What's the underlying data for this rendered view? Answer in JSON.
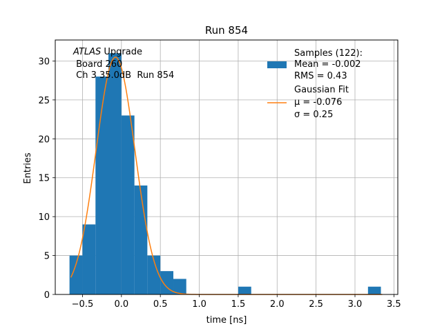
{
  "chart_data": {
    "type": "bar",
    "title": "Run 854",
    "xlabel": "time [ns]",
    "ylabel": "Entries",
    "xlim": [
      -0.85,
      3.55
    ],
    "ylim": [
      0,
      32.7
    ],
    "xticks": [
      -0.5,
      0.0,
      0.5,
      1.0,
      1.5,
      2.0,
      2.5,
      3.0,
      3.5
    ],
    "xtick_labels": [
      "−0.5",
      "0.0",
      "0.5",
      "1.0",
      "1.5",
      "2.0",
      "2.5",
      "3.0",
      "3.5"
    ],
    "yticks": [
      0,
      5,
      10,
      15,
      20,
      25,
      30
    ],
    "ytick_labels": [
      "0",
      "5",
      "10",
      "15",
      "20",
      "25",
      "30"
    ],
    "grid": true,
    "histogram": {
      "bin_edges": [
        -0.667,
        -0.5,
        -0.333,
        -0.167,
        0.0,
        0.167,
        0.333,
        0.5,
        0.667,
        0.833,
        1.0,
        1.167,
        1.333,
        1.5,
        1.667,
        1.833,
        2.0,
        2.167,
        2.333,
        2.5,
        2.667,
        2.833,
        3.0,
        3.167,
        3.333
      ],
      "bin_edges_note": "",
      "counts": [
        5,
        9,
        28,
        31,
        23,
        14,
        5,
        3,
        2,
        0,
        0,
        0,
        0,
        1,
        0,
        0,
        0,
        0,
        0,
        0,
        0,
        0,
        0,
        1
      ],
      "color": "#1f77b4"
    },
    "fit": {
      "amplitude": 30.5,
      "mu": -0.076,
      "sigma": 0.25,
      "x_range": [
        -0.65,
        3.35
      ],
      "color": "#ff7f0e"
    },
    "annotation": {
      "line1_italic": "ATLAS",
      "line1_rest": " Upgrade",
      "line2": " Board 260",
      "line3": " Ch 3 35.0dB  Run 854"
    },
    "legend": {
      "placement": "top-right",
      "samples_line1": "Samples (122):",
      "samples_line2": "Mean = -0.002",
      "samples_line3": "RMS = 0.43",
      "fit_line1": "Gaussian Fit",
      "fit_line2": "μ = -0.076",
      "fit_line3": "σ = 0.25"
    }
  }
}
